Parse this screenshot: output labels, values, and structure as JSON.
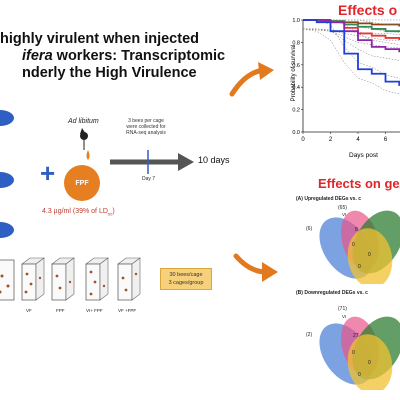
{
  "title": {
    "line1": "highly virulent when injected",
    "line2_italic": "ifera",
    "line2_rest": " workers: Transcriptomic",
    "line3": "nderly the High Virulence"
  },
  "feeding": {
    "ad_libitum": "Ad libitum",
    "plus": "+",
    "fpf_label": "FPF",
    "dose": "4.3 µg/ml (39% of LD",
    "dose_sub": "50",
    "dose_end": ")"
  },
  "timeline": {
    "collection_note": "3 bees per cage were collected for RNA-seq analysis",
    "day7": "Day 7",
    "end_label": "10 days"
  },
  "cages": {
    "labels": [
      "VF",
      "FPF",
      "VI+ FPF",
      "VF +FPF"
    ]
  },
  "groups_box": {
    "line1": "30 bees/cage",
    "line2": "3 cages/group"
  },
  "survival": {
    "title": "Effects o",
    "ylabel": "Probability of survival",
    "xlabel": "Days post",
    "y_ticks": [
      "1.0",
      "0.8",
      "0.6",
      "0.4",
      "0.2",
      "0.0"
    ],
    "x_ticks": [
      "0",
      "2",
      "4",
      "6"
    ]
  },
  "genes": {
    "title": "Effects on ge",
    "panel_a": "(A)  Upregulated DEGs vs. c",
    "panel_b": "(B) Downregulated DEGs vs. c",
    "venn_a_numbers": [
      "(65)",
      "VI",
      "(6)",
      "8",
      "0",
      "0",
      "0"
    ],
    "venn_b_numbers": [
      "(71)",
      "VI",
      "(2)",
      "27",
      "0",
      "0",
      "0"
    ]
  },
  "colors": {
    "title_red": "#e0262a",
    "arrow_orange": "#e3791f",
    "fpf_orange": "#e67e22",
    "ellipse_blue": "#2f5fc4"
  },
  "chart_data": {
    "type": "line",
    "title": "Effects o",
    "xlabel": "Days post",
    "ylabel": "Probability of survival",
    "ylim": [
      0,
      1.0
    ],
    "x": [
      0,
      1,
      2,
      3,
      4,
      5,
      6,
      7,
      8
    ],
    "series": [
      {
        "color": "#8b4513",
        "values": [
          1.0,
          1.0,
          0.99,
          0.98,
          0.97,
          0.96,
          0.96,
          0.95,
          0.95
        ]
      },
      {
        "color": "#2e8b57",
        "values": [
          1.0,
          1.0,
          0.99,
          0.96,
          0.94,
          0.92,
          0.9,
          0.9,
          0.9
        ]
      },
      {
        "color": "#e53935",
        "values": [
          1.0,
          0.99,
          0.98,
          0.93,
          0.88,
          0.86,
          0.84,
          0.83,
          0.83
        ]
      },
      {
        "color": "#8e24aa",
        "values": [
          1.0,
          1.0,
          0.98,
          0.9,
          0.82,
          0.76,
          0.74,
          0.72,
          0.72
        ]
      },
      {
        "color": "#1e40d8",
        "values": [
          1.0,
          0.98,
          0.9,
          0.7,
          0.56,
          0.52,
          0.45,
          0.42,
          0.42
        ]
      }
    ]
  }
}
